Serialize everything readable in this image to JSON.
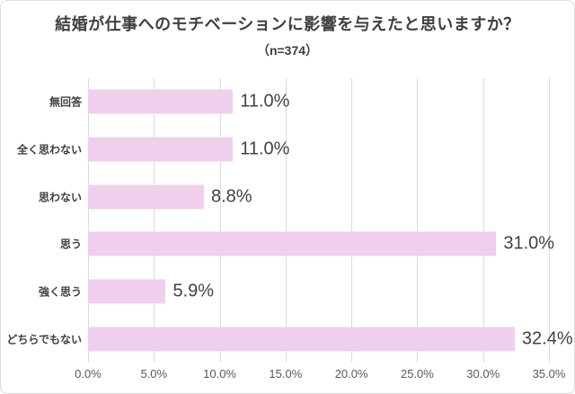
{
  "header": {
    "title": "結婚が仕事へのモチベーションに影響を与えたと思いますか？",
    "subtitle": "（n=374）"
  },
  "chart_data": {
    "type": "bar",
    "orientation": "horizontal",
    "title": "結婚が仕事へのモチベーションに影響を与えたと思いますか？",
    "subtitle": "（n=374）",
    "sample_size_note": "n=374",
    "categories": [
      "無回答",
      "全く思わない",
      "思わない",
      "思う",
      "強く思う",
      "どちらでもない"
    ],
    "values": [
      11.0,
      11.0,
      8.8,
      31.0,
      5.9,
      32.4
    ],
    "value_labels": [
      "11.0%",
      "11.0%",
      "8.8%",
      "31.0%",
      "5.9%",
      "32.4%"
    ],
    "xlabel": "",
    "ylabel": "",
    "xlim": [
      0,
      35
    ],
    "x_tick_values": [
      0,
      5,
      10,
      15,
      20,
      25,
      30,
      35
    ],
    "x_tick_labels": [
      "0.0%",
      "5.0%",
      "10.0%",
      "15.0%",
      "20.0%",
      "25.0%",
      "30.0%",
      "35.0%"
    ],
    "grid": true,
    "legend": false,
    "colors": {
      "bar": "#f0cfec",
      "gridline": "#dbdbdb",
      "title_text": "#3f3f3f",
      "value_text": "#424242",
      "tick_text": "#595959",
      "card_border": "#dcdcdc",
      "background": "#ffffff"
    }
  }
}
